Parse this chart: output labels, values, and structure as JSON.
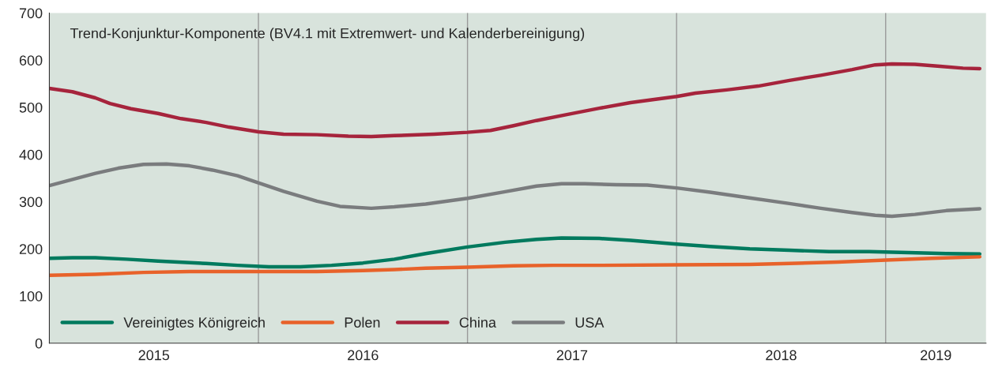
{
  "chart_data": {
    "type": "line",
    "title": "Trend-Konjunktur-Komponente (BV4.1 mit Extremwert- und Kalenderbereinigung)",
    "xlim": [
      2015.0,
      2019.48
    ],
    "ylim": [
      0,
      700
    ],
    "yticks": [
      0,
      100,
      200,
      300,
      400,
      500,
      600,
      700
    ],
    "xticks": [
      {
        "value": 2016.0,
        "label": null
      },
      {
        "value": 2017.0,
        "label": null
      },
      {
        "value": 2018.0,
        "label": null
      },
      {
        "value": 2019.0,
        "label": null
      },
      {
        "value": 2015.5,
        "label": "2015"
      },
      {
        "value": 2016.5,
        "label": "2016"
      },
      {
        "value": 2017.5,
        "label": "2017"
      },
      {
        "value": 2018.5,
        "label": "2018"
      },
      {
        "value": 2019.24,
        "label": "2019"
      }
    ],
    "grid": "x",
    "legend": "bottom left",
    "marker": "none",
    "line_style": "solid",
    "series": [
      {
        "name": "Vereinigtes Königreich",
        "color": "#007a5e",
        "x": [
          2015.0,
          2015.11,
          2015.22,
          2015.37,
          2015.52,
          2015.75,
          2015.9,
          2016.05,
          2016.2,
          2016.35,
          2016.5,
          2016.65,
          2016.8,
          2017.0,
          2017.18,
          2017.33,
          2017.45,
          2017.63,
          2017.78,
          2018.0,
          2018.16,
          2018.35,
          2018.54,
          2018.73,
          2018.92,
          2019.11,
          2019.29,
          2019.45
        ],
        "values": [
          180,
          181,
          181,
          178,
          174,
          169,
          165,
          162,
          162,
          165,
          170,
          178,
          190,
          204,
          214,
          220,
          223,
          222,
          218,
          210,
          205,
          200,
          197,
          194,
          194,
          192,
          190,
          189
        ]
      },
      {
        "name": "Polen",
        "color": "#e8622a",
        "x": [
          2015.0,
          2015.22,
          2015.45,
          2015.67,
          2016.0,
          2016.28,
          2016.5,
          2016.65,
          2016.8,
          2017.0,
          2017.22,
          2017.41,
          2017.63,
          2018.0,
          2018.35,
          2018.54,
          2018.77,
          2019.0,
          2019.22,
          2019.45
        ],
        "values": [
          144,
          146,
          150,
          152,
          152,
          152,
          154,
          156,
          159,
          161,
          164,
          165,
          165,
          166,
          167,
          169,
          172,
          176,
          180,
          183
        ]
      },
      {
        "name": "China",
        "color": "#a6243c",
        "x": [
          2015.0,
          2015.11,
          2015.22,
          2015.29,
          2015.39,
          2015.52,
          2015.63,
          2015.75,
          2015.86,
          2016.0,
          2016.12,
          2016.28,
          2016.43,
          2016.54,
          2016.65,
          2016.84,
          2017.0,
          2017.11,
          2017.22,
          2017.33,
          2017.48,
          2017.63,
          2017.78,
          2017.9,
          2018.0,
          2018.09,
          2018.24,
          2018.39,
          2018.54,
          2018.69,
          2018.84,
          2018.95,
          2019.03,
          2019.14,
          2019.26,
          2019.37,
          2019.45
        ],
        "values": [
          540,
          533,
          520,
          508,
          497,
          487,
          476,
          468,
          458,
          448,
          443,
          442,
          439,
          438,
          440,
          443,
          447,
          451,
          461,
          472,
          485,
          498,
          510,
          517,
          523,
          530,
          537,
          545,
          557,
          568,
          580,
          590,
          592,
          591,
          587,
          583,
          582
        ]
      },
      {
        "name": "USA",
        "color": "#7a7c7e",
        "x": [
          2015.0,
          2015.11,
          2015.22,
          2015.33,
          2015.45,
          2015.56,
          2015.67,
          2015.78,
          2015.9,
          2016.0,
          2016.12,
          2016.28,
          2016.39,
          2016.54,
          2016.65,
          2016.8,
          2017.0,
          2017.18,
          2017.33,
          2017.45,
          2017.56,
          2017.71,
          2017.86,
          2018.0,
          2018.16,
          2018.35,
          2018.54,
          2018.69,
          2018.84,
          2018.95,
          2019.03,
          2019.14,
          2019.29,
          2019.45
        ],
        "values": [
          334,
          347,
          360,
          371,
          379,
          380,
          376,
          367,
          355,
          340,
          322,
          301,
          290,
          286,
          289,
          295,
          307,
          321,
          333,
          338,
          338,
          336,
          335,
          329,
          320,
          308,
          296,
          286,
          277,
          271,
          269,
          273,
          281,
          285
        ]
      }
    ]
  }
}
